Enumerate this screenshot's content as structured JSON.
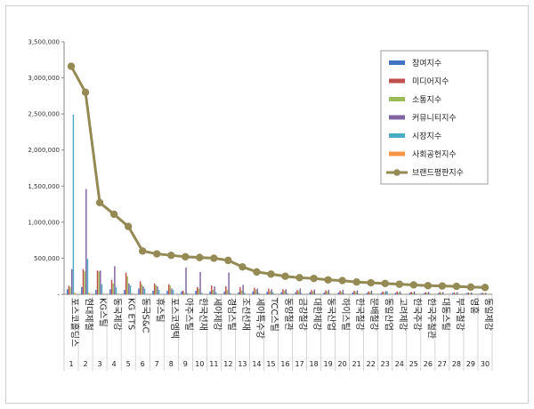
{
  "chart_data": {
    "type": "bar",
    "title": "",
    "xlabel": "",
    "ylabel": "",
    "ylim": [
      0,
      3500000
    ],
    "yticks": [
      "3,500,000",
      "3,000,000",
      "2,500,000",
      "2,000,000",
      "1,500,000",
      "1,000,000",
      "500,000",
      "-"
    ],
    "grid": false,
    "legend_position": "right",
    "indices": [
      "1",
      "2",
      "3",
      "4",
      "5",
      "6",
      "7",
      "8",
      "9",
      "10",
      "11",
      "12",
      "13",
      "14",
      "15",
      "16",
      "17",
      "18",
      "19",
      "20",
      "21",
      "22",
      "23",
      "24",
      "25",
      "26",
      "27",
      "28",
      "29",
      "30"
    ],
    "categories": [
      "포스코홀딩스",
      "현대제철",
      "KG스틸",
      "동국제강",
      "KG ETS",
      "동국S&C",
      "휴스틸",
      "포스코엠텍",
      "아주스틸",
      "한국선재",
      "세아제강",
      "경남스틸",
      "조선선재",
      "세아특수강",
      "TCC스틸",
      "동양철관",
      "금강철강",
      "대한제강",
      "동국산업",
      "하이스틸",
      "한국철강",
      "문배철강",
      "동일산업",
      "고려제강",
      "한국주강",
      "한국주철관",
      "대동스틸",
      "부국철강",
      "영흥",
      "동일제강"
    ],
    "series": [
      {
        "name": "참여지수",
        "color": "#4472c4",
        "type": "bar",
        "values": [
          70000,
          100000,
          60000,
          70000,
          60000,
          80000,
          50000,
          50000,
          40000,
          50000,
          40000,
          40000,
          30000,
          40000,
          35000,
          30000,
          30000,
          30000,
          25000,
          25000,
          25000,
          20000,
          20000,
          20000,
          20000,
          15000,
          15000,
          15000,
          15000,
          15000
        ]
      },
      {
        "name": "미디어지수",
        "color": "#c0504d",
        "type": "bar",
        "values": [
          120000,
          350000,
          330000,
          200000,
          300000,
          180000,
          150000,
          140000,
          50000,
          100000,
          120000,
          110000,
          100000,
          90000,
          80000,
          70000,
          60000,
          60000,
          55000,
          50000,
          50000,
          40000,
          40000,
          40000,
          35000,
          30000,
          30000,
          25000,
          25000,
          20000
        ]
      },
      {
        "name": "소통지수",
        "color": "#9bbb59",
        "type": "bar",
        "values": [
          100000,
          320000,
          320000,
          150000,
          250000,
          140000,
          130000,
          120000,
          20000,
          80000,
          60000,
          60000,
          50000,
          60000,
          40000,
          50000,
          45000,
          40000,
          40000,
          30000,
          30000,
          30000,
          25000,
          25000,
          20000,
          20000,
          20000,
          15000,
          15000,
          15000
        ]
      },
      {
        "name": "커뮤니티지수",
        "color": "#8064a2",
        "type": "bar",
        "values": [
          350000,
          1460000,
          330000,
          390000,
          150000,
          110000,
          110000,
          80000,
          370000,
          310000,
          110000,
          300000,
          130000,
          80000,
          70000,
          70000,
          80000,
          65000,
          60000,
          60000,
          55000,
          50000,
          45000,
          40000,
          40000,
          35000,
          30000,
          30000,
          25000,
          20000
        ]
      },
      {
        "name": "시장지수",
        "color": "#4bacc6",
        "type": "bar",
        "values": [
          2490000,
          490000,
          140000,
          100000,
          120000,
          80000,
          60000,
          60000,
          15000,
          20000,
          30000,
          20000,
          20000,
          20000,
          25000,
          15000,
          15000,
          10000,
          10000,
          10000,
          10000,
          10000,
          40000,
          10000,
          10000,
          10000,
          5000,
          5000,
          5000,
          5000
        ]
      },
      {
        "name": "사회공헌지수",
        "color": "#f79646",
        "type": "bar",
        "values": [
          20000,
          20000,
          10000,
          10000,
          15000,
          10000,
          5000,
          5000,
          5000,
          5000,
          5000,
          5000,
          5000,
          5000,
          5000,
          5000,
          5000,
          5000,
          5000,
          5000,
          5000,
          5000,
          5000,
          5000,
          5000,
          5000,
          5000,
          5000,
          5000,
          5000
        ]
      },
      {
        "name": "브랜드평판지수",
        "color": "#948a54",
        "type": "line",
        "values": [
          3160000,
          2800000,
          1270000,
          1110000,
          940000,
          600000,
          560000,
          540000,
          520000,
          510000,
          500000,
          470000,
          380000,
          310000,
          280000,
          250000,
          230000,
          220000,
          200000,
          190000,
          170000,
          160000,
          150000,
          140000,
          130000,
          120000,
          115000,
          110000,
          100000,
          95000
        ]
      }
    ]
  }
}
